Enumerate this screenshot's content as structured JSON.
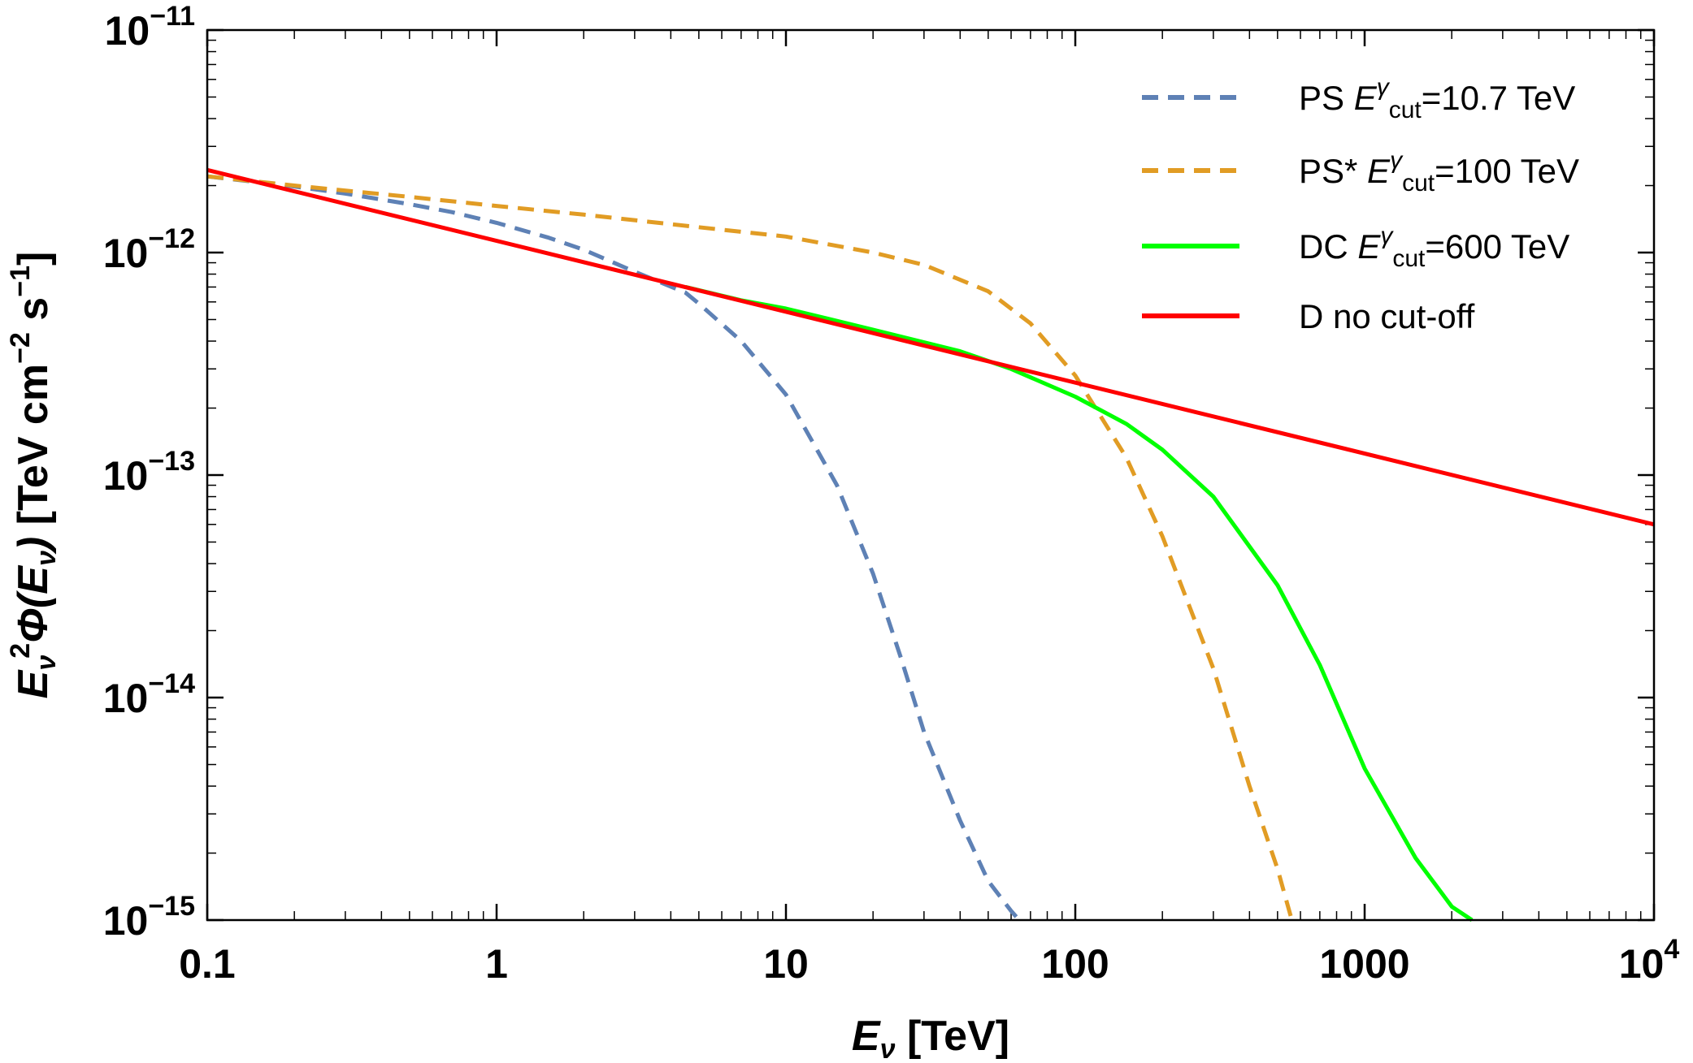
{
  "chart_data": {
    "type": "line",
    "title": "",
    "xscale": "log",
    "yscale": "log",
    "xlim": [
      0.1,
      10000
    ],
    "ylim": [
      1e-15,
      1e-11
    ],
    "xlabel": {
      "main": "E",
      "sub": "ν",
      "unit": " [TeV]"
    },
    "ylabel": {
      "e": "E",
      "e_sub": "ν",
      "e_sup": "2",
      "phi": "Φ(",
      "phi_e": "E",
      "phi_sub": "ν",
      "phi_close": ")",
      "unit_open": " [TeV cm",
      "cm_sup": "−2",
      "s": " s",
      "s_sup": "−1",
      "unit_close": "]"
    },
    "x_ticks": [
      {
        "value": 0.1,
        "base": "0.1",
        "sup": ""
      },
      {
        "value": 1,
        "base": "1",
        "sup": ""
      },
      {
        "value": 10,
        "base": "10",
        "sup": ""
      },
      {
        "value": 100,
        "base": "100",
        "sup": ""
      },
      {
        "value": 1000,
        "base": "1000",
        "sup": ""
      },
      {
        "value": 10000,
        "base": "10",
        "sup": "4"
      }
    ],
    "y_ticks": [
      {
        "value": 1e-11,
        "base": "10",
        "sup": "−11"
      },
      {
        "value": 1e-12,
        "base": "10",
        "sup": "−12"
      },
      {
        "value": 1e-13,
        "base": "10",
        "sup": "−13"
      },
      {
        "value": 1e-14,
        "base": "10",
        "sup": "−14"
      },
      {
        "value": 1e-15,
        "base": "10",
        "sup": "−15"
      }
    ],
    "legend": {
      "position": "top-right"
    },
    "series": [
      {
        "name": "PS E^γ_cut=10.7 TeV",
        "legend": {
          "pre": "PS ",
          "e": "E",
          "sup": "γ",
          "sub": "cut",
          "post": "=10.7 TeV"
        },
        "color": "#5e81b5",
        "dashed": true,
        "x": [
          0.1,
          0.15,
          0.2,
          0.3,
          0.5,
          0.7,
          1,
          1.5,
          2,
          3,
          4.5,
          5,
          7,
          10,
          15,
          20,
          25,
          30,
          40,
          50,
          60,
          64
        ],
        "y": [
          2.2e-12,
          2.07e-12,
          1.98e-12,
          1.84e-12,
          1.65e-12,
          1.52e-12,
          1.36e-12,
          1.17e-12,
          1.03e-12,
          8.2e-13,
          6.6e-13,
          5.9e-13,
          4e-13,
          2.3e-13,
          9e-14,
          3.6e-14,
          1.5e-14,
          7e-15,
          2.8e-15,
          1.5e-15,
          1.1e-15,
          1e-15
        ]
      },
      {
        "name": "PS* E^γ_cut=100 TeV",
        "legend": {
          "pre": "PS* ",
          "e": "E",
          "sup": "γ",
          "sub": "cut",
          "post": "=100 TeV"
        },
        "color": "#e19c24",
        "dashed": true,
        "x": [
          0.1,
          0.2,
          0.5,
          1,
          2,
          5,
          10,
          20,
          30,
          50,
          70,
          100,
          150,
          200,
          300,
          400,
          500,
          560
        ],
        "y": [
          2.2e-12,
          2e-12,
          1.78e-12,
          1.62e-12,
          1.48e-12,
          1.3e-12,
          1.18e-12,
          1e-12,
          8.8e-13,
          6.7e-13,
          4.8e-13,
          2.8e-13,
          1.2e-13,
          5.3e-14,
          1.35e-14,
          4e-15,
          1.7e-15,
          1e-15
        ]
      },
      {
        "name": "DC E^γ_cut=600 TeV",
        "legend": {
          "pre": "DC ",
          "e": "E",
          "sup": "γ",
          "sub": "cut",
          "post": "=600 TeV"
        },
        "color": "#00ff00",
        "dashed": false,
        "x": [
          4.5,
          7,
          10,
          20,
          40,
          60,
          100,
          150,
          200,
          300,
          500,
          700,
          1000,
          1500,
          2000,
          2350
        ],
        "y": [
          7e-13,
          6.1e-13,
          5.6e-13,
          4.5e-13,
          3.6e-13,
          3e-13,
          2.25e-13,
          1.7e-13,
          1.3e-13,
          8e-14,
          3.2e-14,
          1.4e-14,
          4.8e-15,
          1.9e-15,
          1.15e-15,
          1e-15
        ]
      },
      {
        "name": "D no cut-off",
        "legend": {
          "pre": "D no cut-off",
          "e": "",
          "sup": "",
          "sub": "",
          "post": ""
        },
        "color": "#ff0000",
        "dashed": false,
        "x": [
          0.1,
          10000
        ],
        "y": [
          2.35e-12,
          6e-14
        ]
      }
    ]
  }
}
